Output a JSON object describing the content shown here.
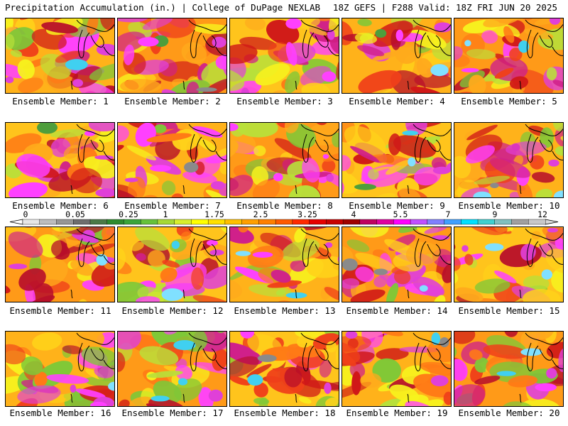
{
  "header": {
    "left_title": "Precipitation Accumulation (in.) | College of DuPage NEXLAB",
    "right_title": "18Z GEFS | F288 Valid: 18Z FRI JUN 20 2025"
  },
  "panels": [
    {
      "label": "Ensemble Member: 1"
    },
    {
      "label": "Ensemble Member: 2"
    },
    {
      "label": "Ensemble Member: 3"
    },
    {
      "label": "Ensemble Member: 4"
    },
    {
      "label": "Ensemble Member: 5"
    },
    {
      "label": "Ensemble Member: 6"
    },
    {
      "label": "Ensemble Member: 7"
    },
    {
      "label": "Ensemble Member: 8"
    },
    {
      "label": "Ensemble Member: 9"
    },
    {
      "label": "Ensemble Member: 10"
    },
    {
      "label": "Ensemble Member: 11"
    },
    {
      "label": "Ensemble Member: 12"
    },
    {
      "label": "Ensemble Member: 13"
    },
    {
      "label": "Ensemble Member: 14"
    },
    {
      "label": "Ensemble Member: 15"
    },
    {
      "label": "Ensemble Member: 16"
    },
    {
      "label": "Ensemble Member: 17"
    },
    {
      "label": "Ensemble Member: 18"
    },
    {
      "label": "Ensemble Member: 19"
    },
    {
      "label": "Ensemble Member: 20"
    }
  ],
  "colorbar": {
    "tick_labels": [
      "0",
      "0.05",
      "0.25",
      "1",
      "1.75",
      "2.5",
      "3.25",
      "4",
      "5.5",
      "7",
      "9",
      "12"
    ],
    "colors": [
      "#e6e6e6",
      "#bdbdbd",
      "#969696",
      "#6e6e6e",
      "#4a7a46",
      "#2e8b2e",
      "#3aa53a",
      "#66c23a",
      "#a6d936",
      "#d7ef2e",
      "#ffff00",
      "#ffe000",
      "#ffc000",
      "#ffa000",
      "#ff8000",
      "#ff5a00",
      "#ff2a00",
      "#e60000",
      "#c80000",
      "#a00000",
      "#c00060",
      "#e000a0",
      "#ff00ff",
      "#c050ff",
      "#8080ff",
      "#40a0ff",
      "#00e0ff",
      "#40d0d0",
      "#80c0c0",
      "#a0a0a0",
      "#c8c8c8"
    ]
  }
}
